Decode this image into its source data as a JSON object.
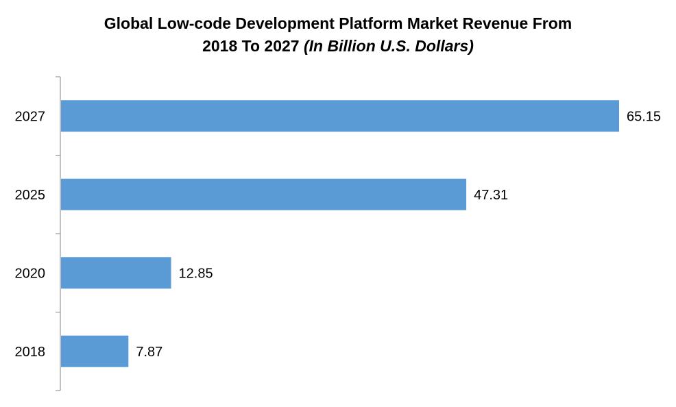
{
  "chart_data": {
    "type": "bar",
    "orientation": "horizontal",
    "title": "Global Low-code Development Platform Market Revenue From 2018 To 2027",
    "title_line1": "Global Low-code Development Platform Market Revenue From",
    "title_line2": "2018 To 2027 ",
    "title_italic": "(In Billion U.S. Dollars)",
    "xlabel": "",
    "ylabel": "",
    "categories": [
      "2027",
      "2025",
      "2020",
      "2018"
    ],
    "values": [
      65.15,
      47.31,
      12.85,
      7.87
    ],
    "data_labels": [
      "65.15",
      "47.31",
      "12.85",
      "7.87"
    ],
    "xlim": [
      0,
      65.15
    ],
    "grid": false,
    "legend": "none",
    "bar_color": "#5B9BD5"
  }
}
